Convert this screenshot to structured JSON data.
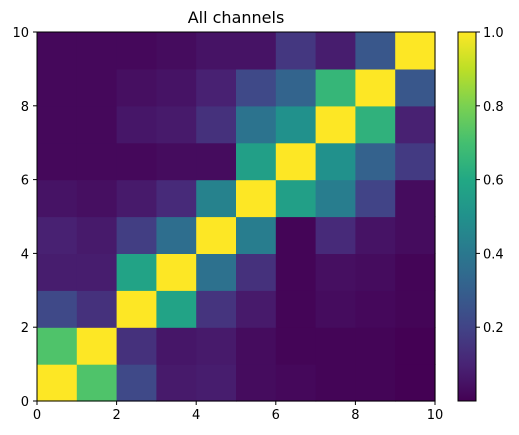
{
  "chart_data": {
    "type": "heatmap",
    "title": "All channels",
    "xlabel": "",
    "ylabel": "",
    "xlim": [
      0,
      10
    ],
    "ylim": [
      0,
      10
    ],
    "x_ticks": [
      "0",
      "2",
      "4",
      "6",
      "8",
      "10"
    ],
    "y_ticks": [
      "0",
      "2",
      "4",
      "6",
      "8",
      "10"
    ],
    "colormap": "viridis",
    "color_range": [
      0,
      1
    ],
    "colorbar_ticks": [
      "0.2",
      "0.4",
      "0.6",
      "0.8",
      "1.0"
    ],
    "colorbar_tick_values": [
      0.2,
      0.4,
      0.6,
      0.8,
      1.0
    ],
    "grid": false,
    "matrix_rows_bottom_to_top": [
      [
        1.0,
        0.72,
        0.22,
        0.07,
        0.08,
        0.03,
        0.02,
        0.01,
        0.01,
        0.0
      ],
      [
        0.72,
        1.0,
        0.14,
        0.06,
        0.07,
        0.03,
        0.01,
        0.01,
        0.01,
        0.0
      ],
      [
        0.22,
        0.14,
        1.0,
        0.58,
        0.15,
        0.07,
        0.01,
        0.03,
        0.02,
        0.01
      ],
      [
        0.08,
        0.08,
        0.58,
        1.0,
        0.37,
        0.14,
        0.01,
        0.04,
        0.03,
        0.01
      ],
      [
        0.09,
        0.07,
        0.18,
        0.36,
        1.0,
        0.42,
        0.01,
        0.12,
        0.05,
        0.03
      ],
      [
        0.05,
        0.04,
        0.07,
        0.12,
        0.44,
        1.0,
        0.56,
        0.42,
        0.2,
        0.03
      ],
      [
        0.02,
        0.02,
        0.02,
        0.03,
        0.03,
        0.56,
        1.0,
        0.5,
        0.31,
        0.17
      ],
      [
        0.02,
        0.02,
        0.06,
        0.07,
        0.14,
        0.38,
        0.5,
        1.0,
        0.64,
        0.09
      ],
      [
        0.02,
        0.02,
        0.04,
        0.05,
        0.09,
        0.22,
        0.32,
        0.66,
        1.0,
        0.27
      ],
      [
        0.02,
        0.02,
        0.02,
        0.03,
        0.05,
        0.05,
        0.16,
        0.08,
        0.27,
        1.0
      ]
    ]
  }
}
